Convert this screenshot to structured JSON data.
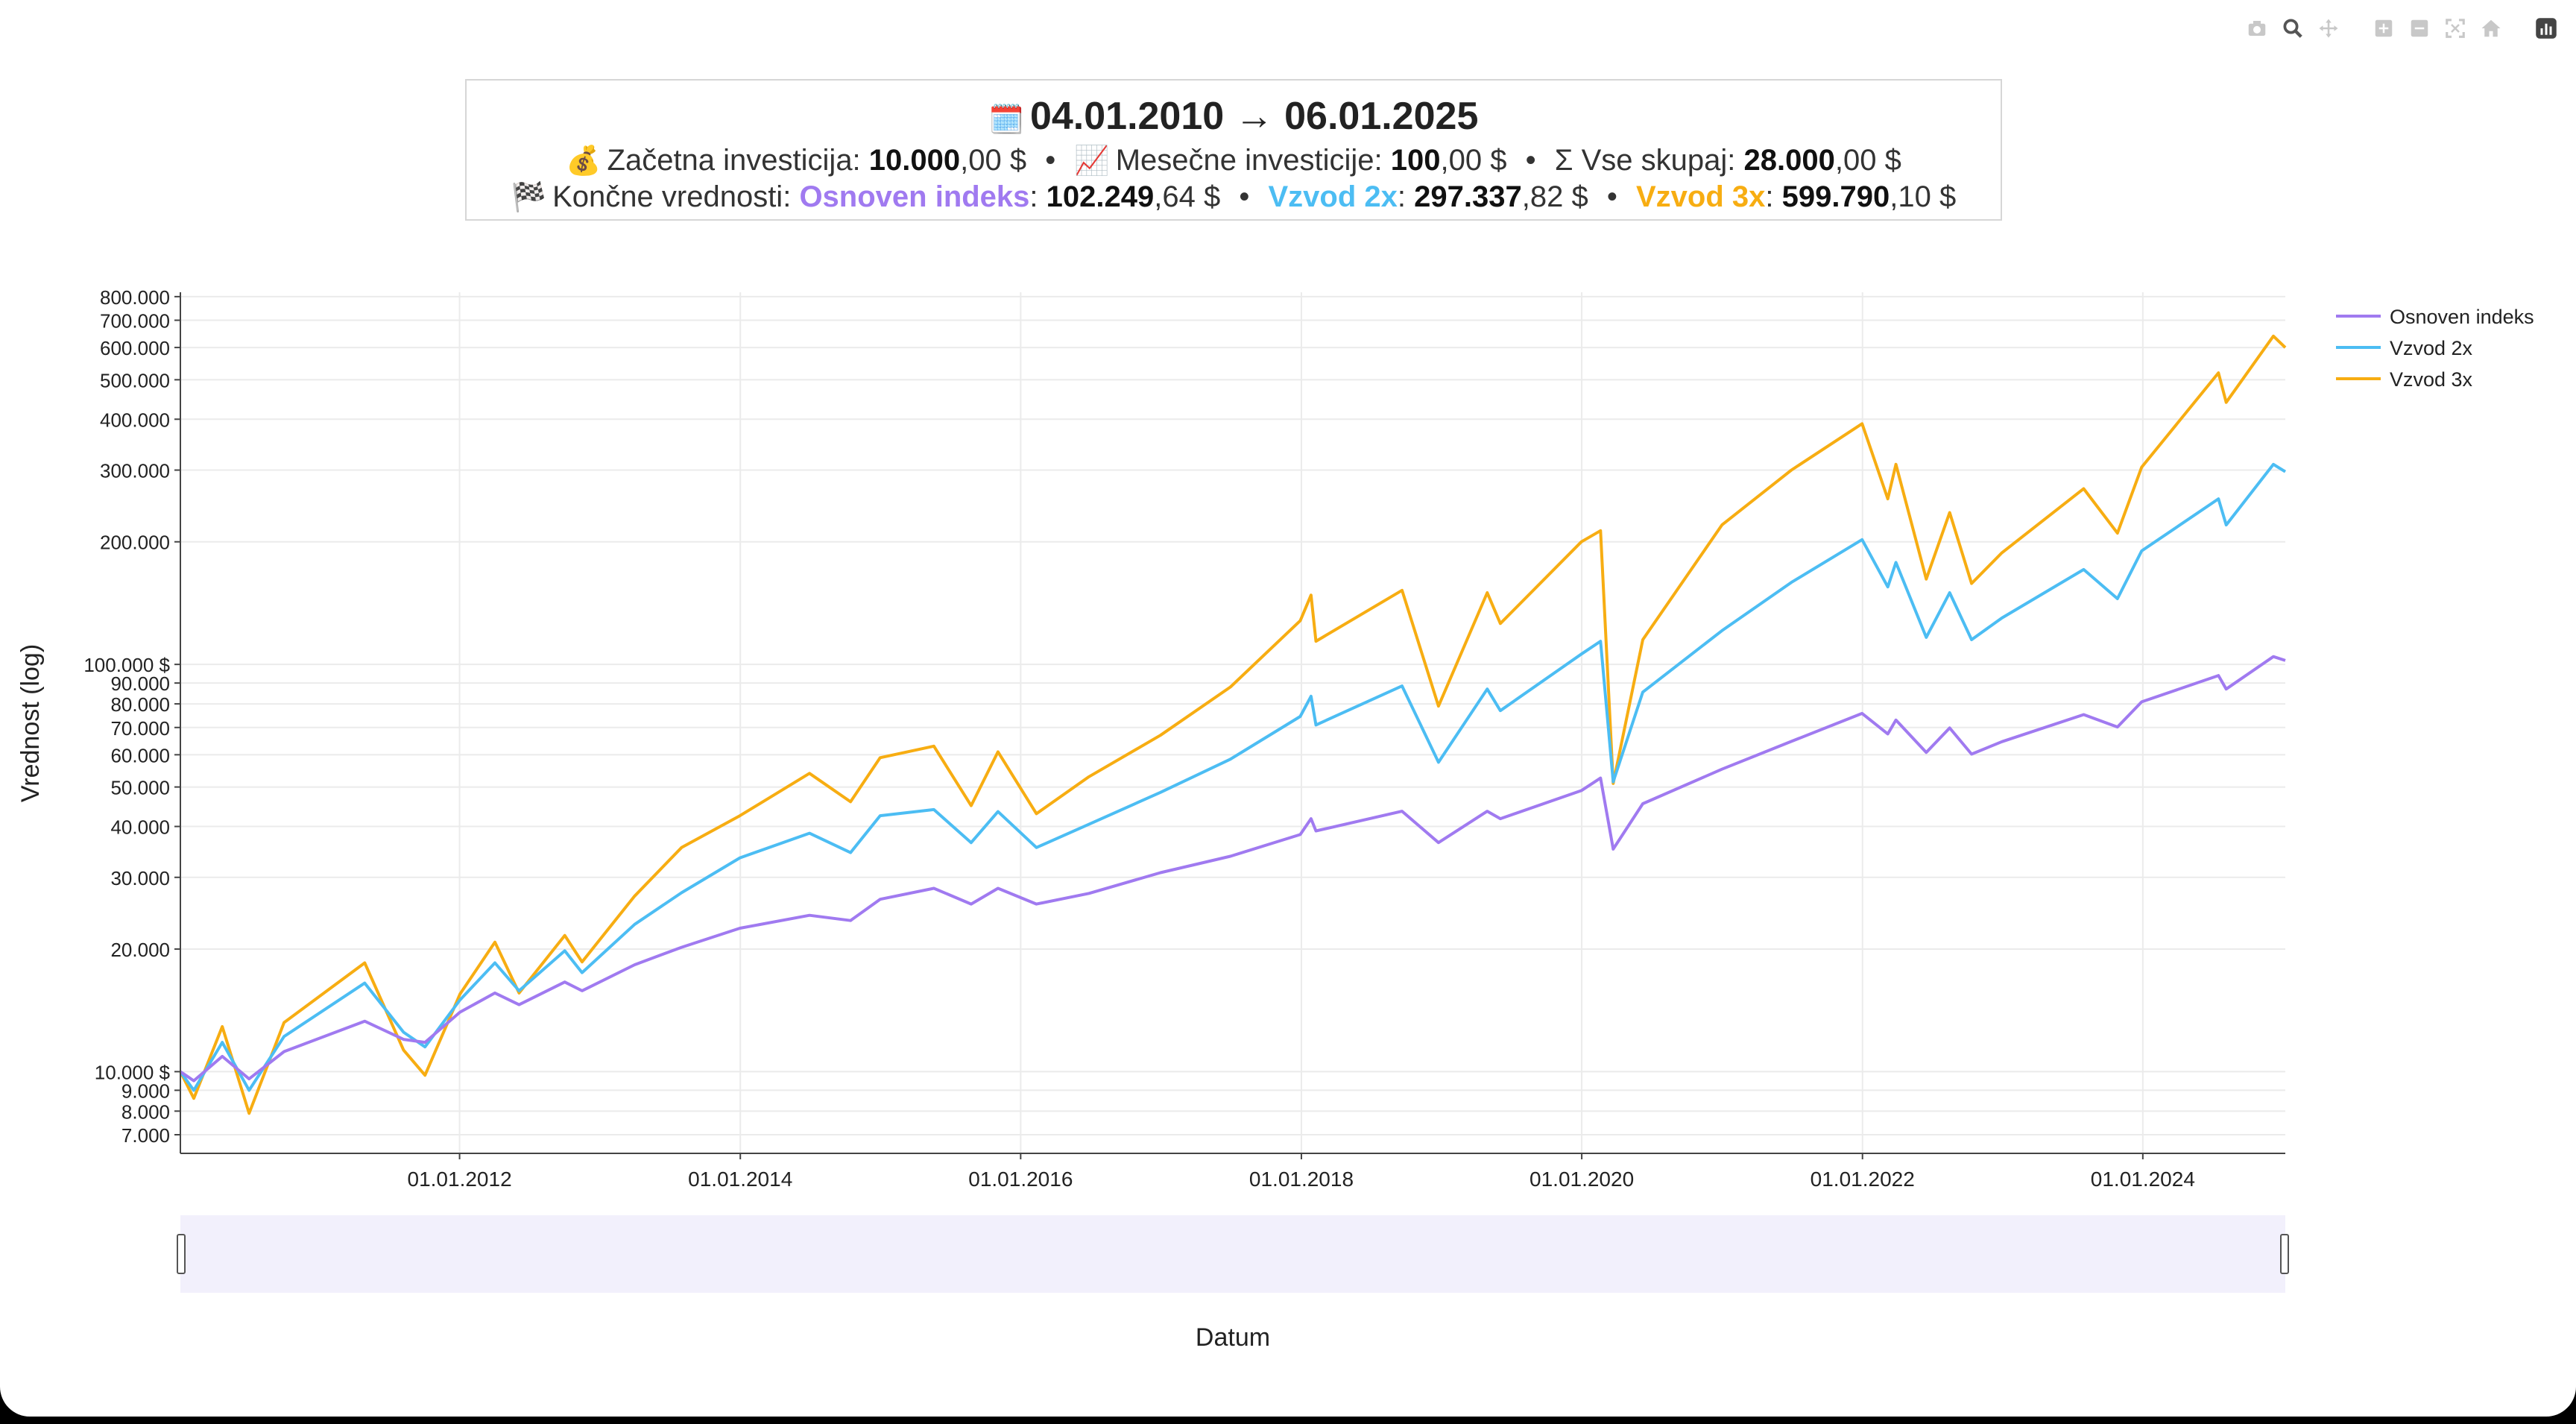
{
  "header": {
    "date_start": "04.01.2010",
    "arrow": "→",
    "date_end": "06.01.2025",
    "emoji_calendar": "🗓️",
    "emoji_money": "💰",
    "emoji_chart": "📈",
    "emoji_flag": "🏁",
    "initial_label": "Začetna investicija:",
    "initial_bold": "10.000",
    "initial_rest": ",00 $",
    "monthly_label": "Mesečne investicije:",
    "monthly_bold": "100",
    "monthly_rest": ",00 $",
    "total_label": "Σ Vse skupaj:",
    "total_bold": "28.000",
    "total_rest": ",00 $",
    "bullet": "•",
    "final_label": "Končne vrednosti:",
    "final_base_name": "Osnoven indeks",
    "final_base_bold": "102.249",
    "final_base_rest": ",64 $",
    "final_2x_name": "Vzvod 2x",
    "final_2x_bold": "297.337",
    "final_2x_rest": ",82 $",
    "final_3x_name": "Vzvod 3x",
    "final_3x_bold": "599.790",
    "final_3x_rest": ",10 $",
    "colon": ":"
  },
  "modebar": [
    "camera-icon",
    "zoom-icon",
    "pan-icon",
    "zoom-in-icon",
    "zoom-out-icon",
    "autoscale-icon",
    "reset-axes-icon",
    "plotly-logo-icon"
  ],
  "chart_data": {
    "type": "line",
    "xlabel": "Datum",
    "ylabel": "Vrednost (log)",
    "y_scale": "log",
    "ylim": [
      6300,
      820000
    ],
    "xlim": [
      "2010-01-04",
      "2025-01-06"
    ],
    "grid": true,
    "legend_position": "top-right",
    "x_ticks": [
      "01.01.2012",
      "01.01.2014",
      "01.01.2016",
      "01.01.2018",
      "01.01.2020",
      "01.01.2022",
      "01.01.2024"
    ],
    "y_ticks": [
      {
        "value": 7000,
        "label": "7.000"
      },
      {
        "value": 8000,
        "label": "8.000"
      },
      {
        "value": 9000,
        "label": "9.000"
      },
      {
        "value": 10000,
        "label": "10.000 $"
      },
      {
        "value": 20000,
        "label": "20.000"
      },
      {
        "value": 30000,
        "label": "30.000"
      },
      {
        "value": 40000,
        "label": "40.000"
      },
      {
        "value": 50000,
        "label": "50.000"
      },
      {
        "value": 60000,
        "label": "60.000"
      },
      {
        "value": 70000,
        "label": "70.000"
      },
      {
        "value": 80000,
        "label": "80.000"
      },
      {
        "value": 90000,
        "label": "90.000"
      },
      {
        "value": 100000,
        "label": "100.000 $"
      },
      {
        "value": 200000,
        "label": "200.000"
      },
      {
        "value": 300000,
        "label": "300.000"
      },
      {
        "value": 400000,
        "label": "400.000"
      },
      {
        "value": 500000,
        "label": "500.000"
      },
      {
        "value": 600000,
        "label": "600.000"
      },
      {
        "value": 700000,
        "label": "700.000"
      },
      {
        "value": 800000,
        "label": "800.000"
      }
    ],
    "series": [
      {
        "name": "Osnoven indeks",
        "color": "#a07af0",
        "points": [
          [
            "2010-01-04",
            10000
          ],
          [
            "2010-02-08",
            9500
          ],
          [
            "2010-04-23",
            10900
          ],
          [
            "2010-07-02",
            9600
          ],
          [
            "2010-10-01",
            11200
          ],
          [
            "2011-04-29",
            13300
          ],
          [
            "2011-08-08",
            12000
          ],
          [
            "2011-10-03",
            11800
          ],
          [
            "2012-01-02",
            14000
          ],
          [
            "2012-04-02",
            15600
          ],
          [
            "2012-06-04",
            14600
          ],
          [
            "2012-10-01",
            16600
          ],
          [
            "2012-11-15",
            15800
          ],
          [
            "2013-04-01",
            18300
          ],
          [
            "2013-08-01",
            20200
          ],
          [
            "2013-12-31",
            22500
          ],
          [
            "2014-06-30",
            24200
          ],
          [
            "2014-10-15",
            23500
          ],
          [
            "2014-12-31",
            26500
          ],
          [
            "2015-05-20",
            28200
          ],
          [
            "2015-08-25",
            25800
          ],
          [
            "2015-11-03",
            28200
          ],
          [
            "2016-02-11",
            25800
          ],
          [
            "2016-06-27",
            27400
          ],
          [
            "2016-12-30",
            30800
          ],
          [
            "2017-06-30",
            33800
          ],
          [
            "2017-12-29",
            38200
          ],
          [
            "2018-01-26",
            41800
          ],
          [
            "2018-02-08",
            39000
          ],
          [
            "2018-09-20",
            43600
          ],
          [
            "2018-12-24",
            36500
          ],
          [
            "2019-04-30",
            43600
          ],
          [
            "2019-06-03",
            41800
          ],
          [
            "2019-12-31",
            49000
          ],
          [
            "2020-02-19",
            52600
          ],
          [
            "2020-03-23",
            35200
          ],
          [
            "2020-06-08",
            45500
          ],
          [
            "2020-12-31",
            55300
          ],
          [
            "2021-06-30",
            64700
          ],
          [
            "2021-12-31",
            75800
          ],
          [
            "2022-03-08",
            67500
          ],
          [
            "2022-03-29",
            73000
          ],
          [
            "2022-06-16",
            60800
          ],
          [
            "2022-08-16",
            69800
          ],
          [
            "2022-10-12",
            60200
          ],
          [
            "2022-12-30",
            64600
          ],
          [
            "2023-07-31",
            75300
          ],
          [
            "2023-10-27",
            70200
          ],
          [
            "2023-12-29",
            80900
          ],
          [
            "2024-07-16",
            93900
          ],
          [
            "2024-08-05",
            87000
          ],
          [
            "2024-12-06",
            104500
          ],
          [
            "2025-01-06",
            102250
          ]
        ]
      },
      {
        "name": "Vzvod 2x",
        "color": "#4cbdf3",
        "points": [
          [
            "2010-01-04",
            10000
          ],
          [
            "2010-02-08",
            9000
          ],
          [
            "2010-04-23",
            11800
          ],
          [
            "2010-07-02",
            9000
          ],
          [
            "2010-10-01",
            12200
          ],
          [
            "2011-04-29",
            16500
          ],
          [
            "2011-08-08",
            12500
          ],
          [
            "2011-10-03",
            11500
          ],
          [
            "2012-01-02",
            15000
          ],
          [
            "2012-04-02",
            18500
          ],
          [
            "2012-06-04",
            15800
          ],
          [
            "2012-10-01",
            19800
          ],
          [
            "2012-11-15",
            17500
          ],
          [
            "2013-04-01",
            23000
          ],
          [
            "2013-08-01",
            27500
          ],
          [
            "2013-12-31",
            33500
          ],
          [
            "2014-06-30",
            38500
          ],
          [
            "2014-10-15",
            34500
          ],
          [
            "2014-12-31",
            42500
          ],
          [
            "2015-05-20",
            44000
          ],
          [
            "2015-08-25",
            36500
          ],
          [
            "2015-11-03",
            43500
          ],
          [
            "2016-02-11",
            35500
          ],
          [
            "2016-06-27",
            40500
          ],
          [
            "2016-12-30",
            48500
          ],
          [
            "2017-06-30",
            58500
          ],
          [
            "2017-12-29",
            74500
          ],
          [
            "2018-01-26",
            83500
          ],
          [
            "2018-02-08",
            71000
          ],
          [
            "2018-09-20",
            88500
          ],
          [
            "2018-12-24",
            57500
          ],
          [
            "2019-04-30",
            87000
          ],
          [
            "2019-06-03",
            77000
          ],
          [
            "2019-12-31",
            106000
          ],
          [
            "2020-02-19",
            114000
          ],
          [
            "2020-03-23",
            51500
          ],
          [
            "2020-06-08",
            85500
          ],
          [
            "2020-12-31",
            121000
          ],
          [
            "2021-06-30",
            159000
          ],
          [
            "2021-12-31",
            202500
          ],
          [
            "2022-03-08",
            155000
          ],
          [
            "2022-03-29",
            178000
          ],
          [
            "2022-06-16",
            116500
          ],
          [
            "2022-08-16",
            150000
          ],
          [
            "2022-10-12",
            115000
          ],
          [
            "2022-12-30",
            130000
          ],
          [
            "2023-07-31",
            171000
          ],
          [
            "2023-10-27",
            145000
          ],
          [
            "2023-12-29",
            190000
          ],
          [
            "2024-07-16",
            255000
          ],
          [
            "2024-08-05",
            220000
          ],
          [
            "2024-12-06",
            310000
          ],
          [
            "2025-01-06",
            297338
          ]
        ]
      },
      {
        "name": "Vzvod 3x",
        "color": "#f7ad12",
        "points": [
          [
            "2010-01-04",
            10000
          ],
          [
            "2010-02-08",
            8600
          ],
          [
            "2010-04-23",
            12900
          ],
          [
            "2010-07-02",
            7900
          ],
          [
            "2010-10-01",
            13200
          ],
          [
            "2011-04-29",
            18500
          ],
          [
            "2011-08-08",
            11300
          ],
          [
            "2011-10-03",
            9800
          ],
          [
            "2012-01-02",
            15500
          ],
          [
            "2012-04-02",
            20800
          ],
          [
            "2012-06-04",
            15600
          ],
          [
            "2012-10-01",
            21600
          ],
          [
            "2012-11-15",
            18600
          ],
          [
            "2013-04-01",
            27000
          ],
          [
            "2013-08-01",
            35500
          ],
          [
            "2013-12-31",
            42500
          ],
          [
            "2014-06-30",
            54000
          ],
          [
            "2014-10-15",
            46000
          ],
          [
            "2014-12-31",
            59000
          ],
          [
            "2015-05-20",
            63000
          ],
          [
            "2015-08-25",
            45000
          ],
          [
            "2015-11-03",
            61000
          ],
          [
            "2016-02-11",
            43000
          ],
          [
            "2016-06-27",
            53000
          ],
          [
            "2016-12-30",
            67000
          ],
          [
            "2017-06-30",
            88000
          ],
          [
            "2017-12-29",
            128000
          ],
          [
            "2018-01-26",
            148000
          ],
          [
            "2018-02-08",
            114000
          ],
          [
            "2018-09-20",
            152000
          ],
          [
            "2018-12-24",
            79000
          ],
          [
            "2019-04-30",
            150000
          ],
          [
            "2019-06-03",
            126000
          ],
          [
            "2019-12-31",
            200000
          ],
          [
            "2020-02-19",
            213000
          ],
          [
            "2020-03-23",
            51000
          ],
          [
            "2020-06-08",
            115000
          ],
          [
            "2020-12-31",
            220000
          ],
          [
            "2021-06-30",
            300000
          ],
          [
            "2021-12-31",
            390000
          ],
          [
            "2022-03-08",
            255000
          ],
          [
            "2022-03-29",
            310000
          ],
          [
            "2022-06-16",
            162000
          ],
          [
            "2022-08-16",
            236000
          ],
          [
            "2022-10-12",
            158000
          ],
          [
            "2022-12-30",
            188000
          ],
          [
            "2023-07-31",
            270000
          ],
          [
            "2023-10-27",
            210000
          ],
          [
            "2023-12-29",
            305000
          ],
          [
            "2024-07-16",
            520000
          ],
          [
            "2024-08-05",
            440000
          ],
          [
            "2024-12-06",
            640000
          ],
          [
            "2025-01-06",
            599790
          ]
        ]
      }
    ]
  }
}
